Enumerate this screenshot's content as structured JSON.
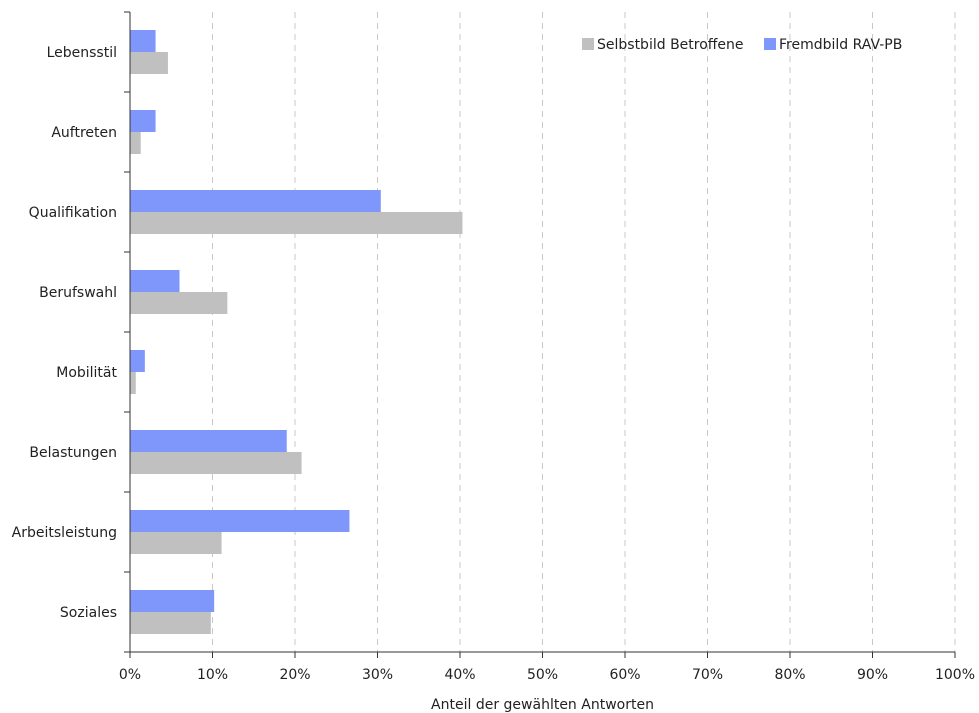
{
  "chart_data": {
    "type": "bar",
    "orientation": "horizontal",
    "categories": [
      "Lebensstil",
      "Auftreten",
      "Qualifikation",
      "Berufswahl",
      "Mobilität",
      "Belastungen",
      "Arbeitsleistung",
      "Soziales"
    ],
    "series": [
      {
        "name": "Selbstbild Betroffene",
        "color": "#c0c0c0",
        "values": [
          4.6,
          1.3,
          40.3,
          11.8,
          0.7,
          20.8,
          11.1,
          9.8
        ]
      },
      {
        "name": "Fremdbild RAV-PB",
        "color": "#7f97fb",
        "values": [
          3.1,
          3.1,
          30.4,
          6.0,
          1.8,
          19.0,
          26.6,
          10.2
        ]
      }
    ],
    "xlabel": "Anteil der gewählten Antworten",
    "ylabel": "",
    "xlim": [
      0,
      100
    ],
    "xticks": [
      "0%",
      "10%",
      "20%",
      "30%",
      "40%",
      "50%",
      "60%",
      "70%",
      "80%",
      "90%",
      "100%"
    ],
    "grid": "vertical dashed",
    "legend_position": "top-right"
  }
}
